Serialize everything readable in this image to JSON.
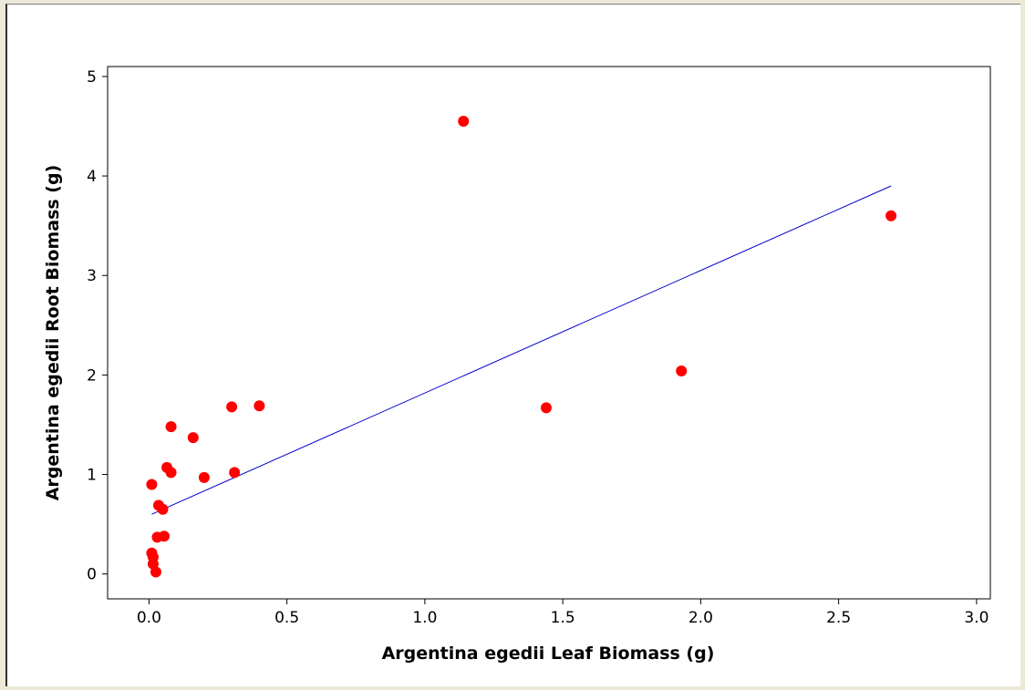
{
  "chart_data": {
    "type": "scatter",
    "title": "",
    "xlabel": "Argentina egedii Leaf Biomass (g)",
    "ylabel": "Argentina egedii Root Biomass (g)",
    "xlim": [
      -0.15,
      3.05
    ],
    "ylim": [
      -0.25,
      5.1
    ],
    "x_ticks": [
      {
        "value": 0.0,
        "label": "0.0"
      },
      {
        "value": 0.5,
        "label": "0.5"
      },
      {
        "value": 1.0,
        "label": "1.0"
      },
      {
        "value": 1.5,
        "label": "1.5"
      },
      {
        "value": 2.0,
        "label": "2.0"
      },
      {
        "value": 2.5,
        "label": "2.5"
      },
      {
        "value": 3.0,
        "label": "3.0"
      }
    ],
    "y_ticks": [
      {
        "value": 0,
        "label": "0"
      },
      {
        "value": 1,
        "label": "1"
      },
      {
        "value": 2,
        "label": "2"
      },
      {
        "value": 3,
        "label": "3"
      },
      {
        "value": 4,
        "label": "4"
      },
      {
        "value": 5,
        "label": "5"
      }
    ],
    "grid": false,
    "series": [
      {
        "points": [
          {
            "x": 0.01,
            "y": 0.9
          },
          {
            "x": 0.01,
            "y": 0.21
          },
          {
            "x": 0.015,
            "y": 0.17
          },
          {
            "x": 0.015,
            "y": 0.1
          },
          {
            "x": 0.025,
            "y": 0.02
          },
          {
            "x": 0.03,
            "y": 0.37
          },
          {
            "x": 0.035,
            "y": 0.69
          },
          {
            "x": 0.05,
            "y": 0.65
          },
          {
            "x": 0.055,
            "y": 0.38
          },
          {
            "x": 0.065,
            "y": 1.07
          },
          {
            "x": 0.08,
            "y": 1.02
          },
          {
            "x": 0.08,
            "y": 1.48
          },
          {
            "x": 0.16,
            "y": 1.37
          },
          {
            "x": 0.2,
            "y": 0.97
          },
          {
            "x": 0.3,
            "y": 1.68
          },
          {
            "x": 0.31,
            "y": 1.02
          },
          {
            "x": 0.4,
            "y": 1.69
          },
          {
            "x": 1.14,
            "y": 4.55
          },
          {
            "x": 1.44,
            "y": 1.67
          },
          {
            "x": 1.93,
            "y": 2.04
          },
          {
            "x": 2.69,
            "y": 3.6
          }
        ],
        "color": "#ff0000"
      }
    ],
    "fit_line": {
      "x": [
        0.01,
        2.69
      ],
      "y": [
        0.6,
        3.9
      ],
      "color": "#0000cc"
    }
  }
}
